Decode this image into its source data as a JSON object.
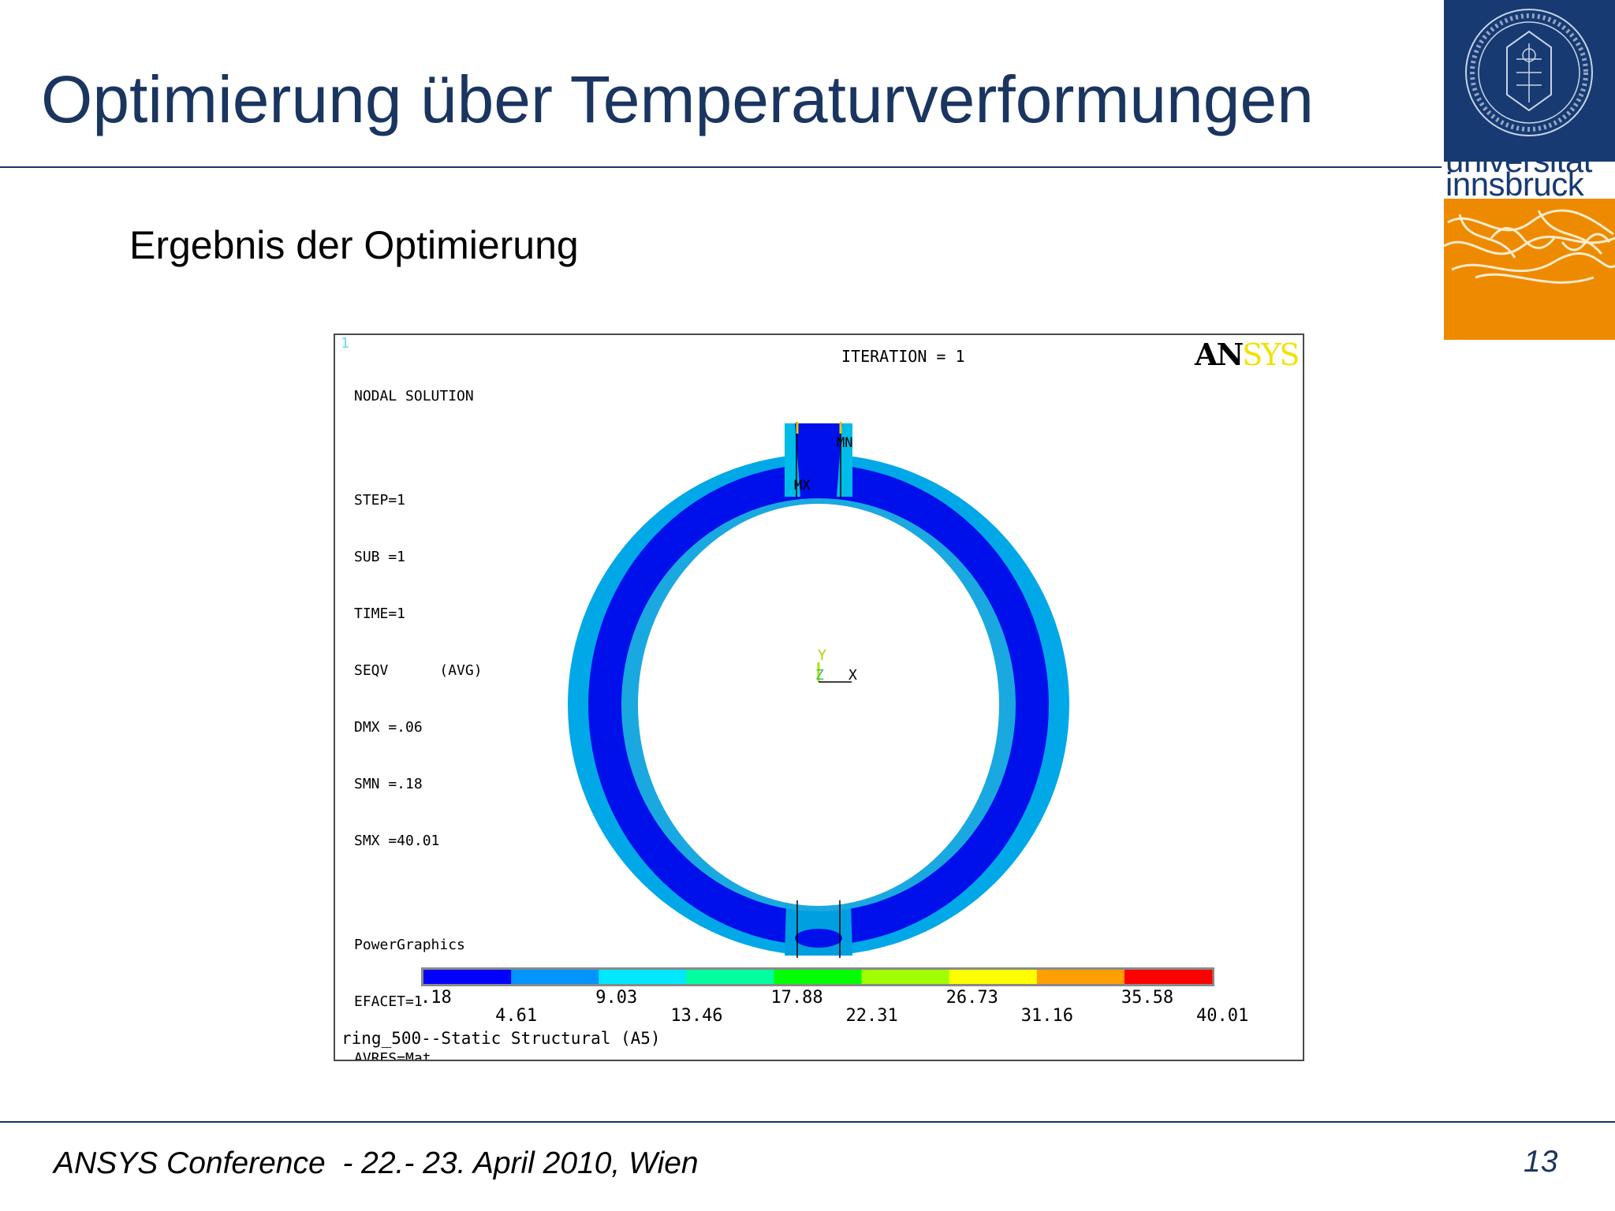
{
  "slide": {
    "title": "Optimierung über Temperaturverformungen",
    "subtitle": "Ergebnis der Optimierung",
    "footer": "ANSYS Conference  - 22.- 23. April 2010, Wien",
    "page_number": "13"
  },
  "logo": {
    "line1": "universität",
    "line2": "innsbruck",
    "colors": {
      "navy": "#173a72",
      "orange": "#ee8a00"
    }
  },
  "plot": {
    "window_number": "1",
    "header": "NODAL SOLUTION",
    "iteration": "ITERATION = 1",
    "brand_a": "AN",
    "brand_b": "SYS",
    "info": {
      "step": "STEP=1",
      "sub": "SUB =1",
      "time": "TIME=1",
      "seqv": "SEQV      (AVG)",
      "dmx": "DMX =.06",
      "smn": "SMN =.18",
      "smx": "SMX =40.01",
      "graphics": "PowerGraphics",
      "efacet": "EFACET=1",
      "avres": "AVRES=Mat"
    },
    "markers": {
      "mn": "MN",
      "mx": "MX"
    },
    "axes": {
      "y": "Y",
      "z": "Z",
      "x": "X"
    },
    "legend": {
      "upper": [
        ".18",
        "9.03",
        "17.88",
        "26.73",
        "35.58"
      ],
      "lower": [
        "4.61",
        "13.46",
        "22.31",
        "31.16",
        "40.01"
      ],
      "colors": [
        "#0000ff",
        "#0094ff",
        "#00e8ff",
        "#00ffa0",
        "#00ff00",
        "#a0ff00",
        "#ffff00",
        "#ffa000",
        "#ff0000"
      ]
    },
    "caption": "ring_500--Static Structural (A5)"
  }
}
